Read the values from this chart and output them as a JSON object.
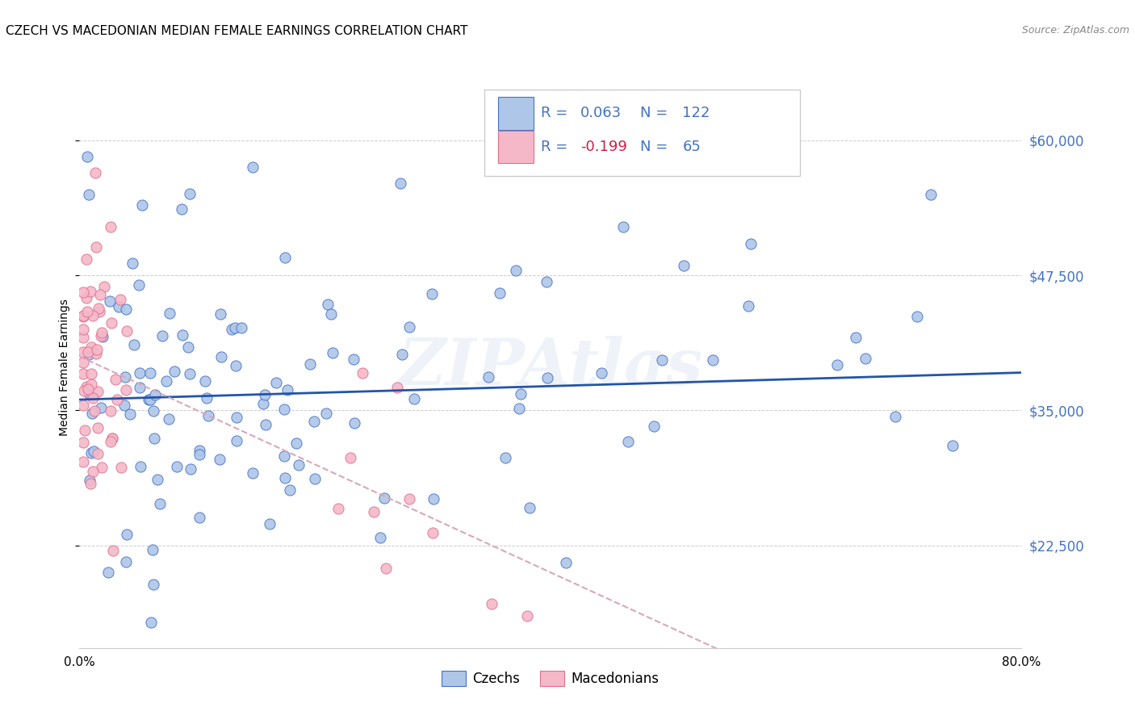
{
  "title": "CZECH VS MACEDONIAN MEDIAN FEMALE EARNINGS CORRELATION CHART",
  "source": "Source: ZipAtlas.com",
  "ylabel": "Median Female Earnings",
  "yticks": [
    22500,
    35000,
    47500,
    60000
  ],
  "ytick_labels": [
    "$22,500",
    "$35,000",
    "$47,500",
    "$60,000"
  ],
  "xlim": [
    0.0,
    0.8
  ],
  "ylim": [
    13000,
    65000
  ],
  "watermark": "ZIPAtlas",
  "r1": "0.063",
  "n1": "122",
  "r2": "-0.199",
  "n2": "65",
  "czech_color": "#aec6e8",
  "macedonian_color": "#f4b8c8",
  "czech_edge_color": "#4472c4",
  "macedonian_edge_color": "#e07090",
  "line_czech_color": "#2255aa",
  "line_macedonian_color": "#d8a8b8",
  "text_blue": "#4472c4",
  "text_red": "#cc2244",
  "background": "#ffffff",
  "grid_color": "#cccccc"
}
